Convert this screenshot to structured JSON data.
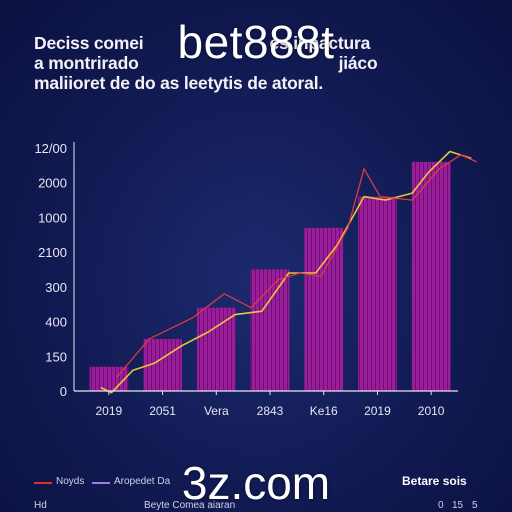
{
  "headline": {
    "line1": "Deciss comei",
    "line1_tail": "es inpactura",
    "line2": "a montrirado",
    "line2_tail": "jiáco",
    "line3": "maliioret de do as leetytis de atoral."
  },
  "watermarks": {
    "top": "bet888t",
    "bottom": "3z.com"
  },
  "legend": {
    "items": [
      {
        "label": "Noyds",
        "color": "#e0312b"
      },
      {
        "label": "Aropedet Da",
        "color": "#9a7fe6"
      }
    ],
    "right_header": "Betare sois",
    "right_values": [
      "0",
      "15",
      "5"
    ],
    "footer_left": "Hd",
    "footer_center": "Beyte Comea aiaran"
  },
  "colors": {
    "bar": "#9c1d9a",
    "bar_stripe": "#6e0f73",
    "line_yellow": "#e8c43a",
    "line_red": "#d93a4a",
    "axis": "#e6e4ee"
  },
  "chart_data": {
    "type": "bar",
    "title": "",
    "xlabel": "",
    "ylabel": "",
    "legend_position": "bottom-left",
    "grid": false,
    "y_tick_labels": [
      "0",
      "150",
      "400",
      "300",
      "2100",
      "1000",
      "2000",
      "12/00"
    ],
    "categories": [
      "2019",
      "2051",
      "Vera",
      "2843",
      "Ke16",
      "2019",
      "2010"
    ],
    "bar_values": [
      0.7,
      1.5,
      2.4,
      3.5,
      4.7,
      5.6,
      6.6
    ],
    "line_series": [
      {
        "color": "yellow",
        "points": [
          [
            0,
            0.1
          ],
          [
            0.2,
            -0.05
          ],
          [
            0.6,
            0.6
          ],
          [
            1.0,
            0.8
          ],
          [
            1.5,
            1.3
          ],
          [
            2.0,
            1.7
          ],
          [
            2.5,
            2.2
          ],
          [
            3.0,
            2.3
          ],
          [
            3.5,
            3.4
          ],
          [
            4.0,
            3.4
          ],
          [
            4.4,
            4.2
          ],
          [
            4.9,
            5.6
          ],
          [
            5.3,
            5.5
          ],
          [
            5.8,
            5.7
          ],
          [
            6.1,
            6.3
          ],
          [
            6.5,
            6.9
          ],
          [
            6.9,
            6.7
          ]
        ]
      },
      {
        "color": "red",
        "points": [
          [
            0.3,
            0.4
          ],
          [
            0.9,
            1.5
          ],
          [
            1.7,
            2.1
          ],
          [
            2.3,
            2.8
          ],
          [
            2.8,
            2.4
          ],
          [
            3.3,
            3.2
          ],
          [
            3.7,
            3.4
          ],
          [
            4.1,
            3.3
          ],
          [
            4.6,
            4.7
          ],
          [
            4.9,
            6.4
          ],
          [
            5.2,
            5.6
          ],
          [
            5.8,
            5.5
          ],
          [
            6.3,
            6.4
          ],
          [
            6.7,
            6.8
          ],
          [
            7.0,
            6.6
          ]
        ]
      }
    ],
    "ylim": [
      0,
      7
    ]
  }
}
